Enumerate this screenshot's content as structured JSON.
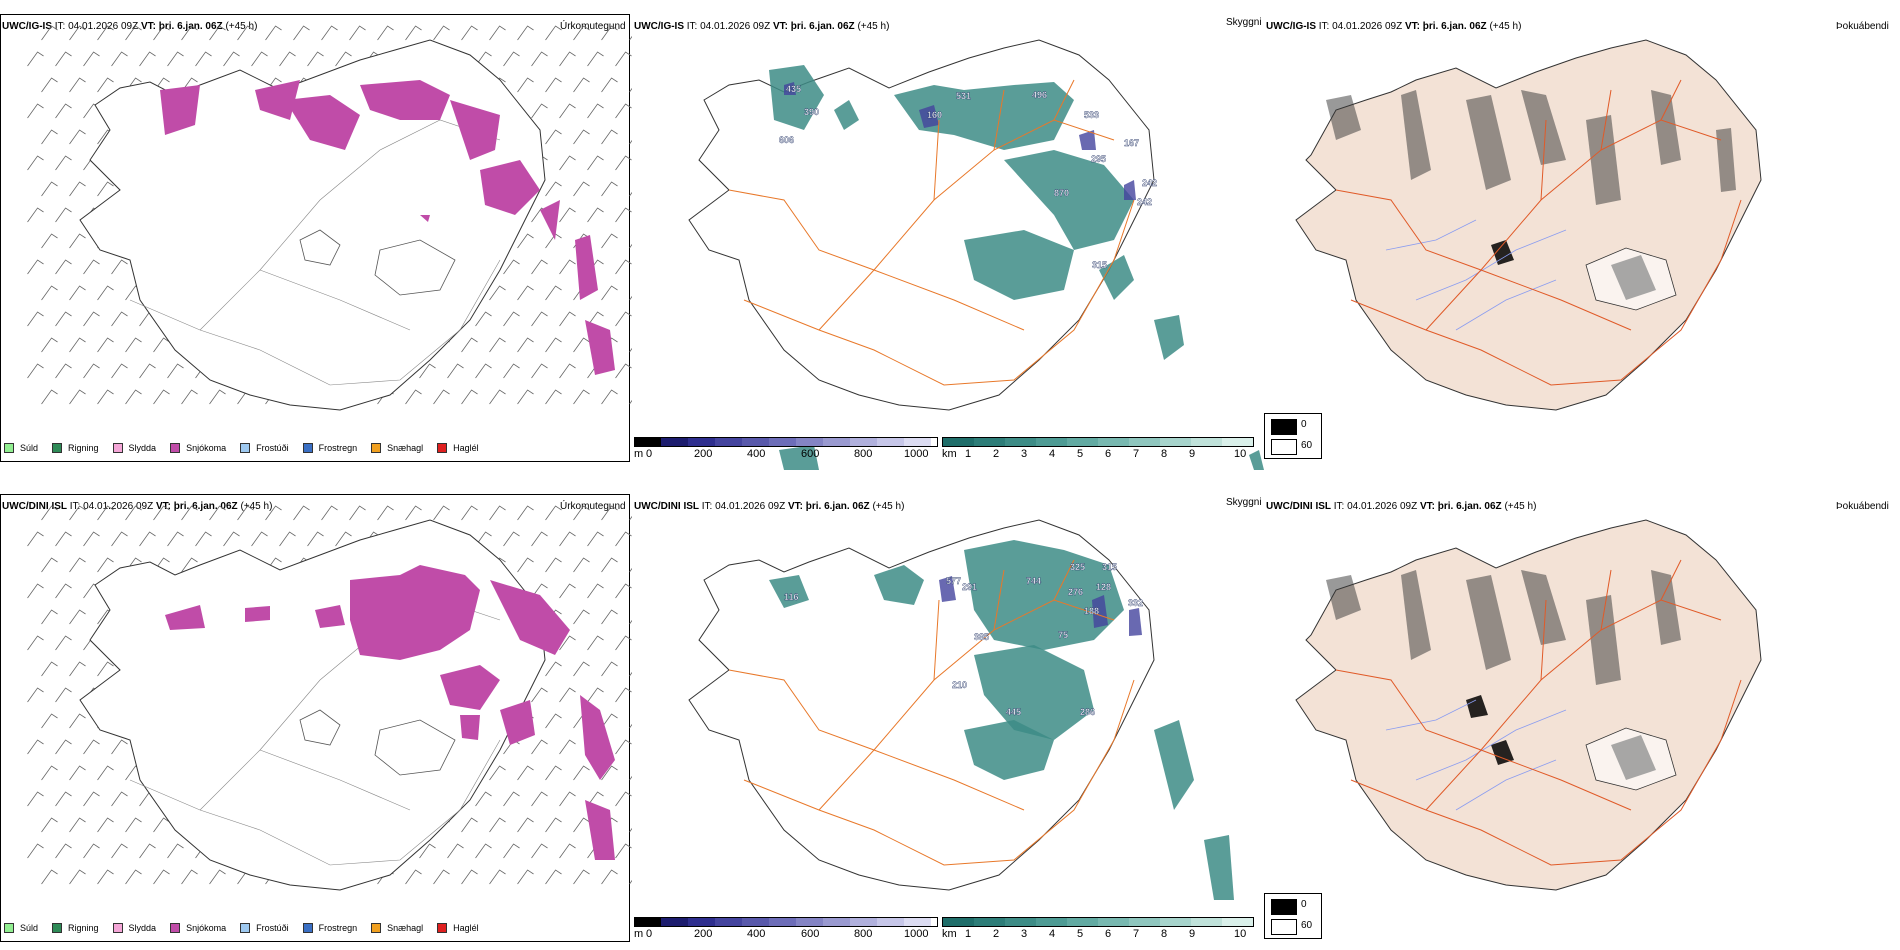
{
  "rows": [
    {
      "model": "UWC/IG-IS",
      "it": "IT: 04.01.2026 09Z",
      "vt": "VT: þri. 6.jan. 06Z",
      "lead": "(+45 h)",
      "precip_maxima": [
        "435",
        "390",
        "606",
        "160",
        "531",
        "496",
        "533",
        "295",
        "167",
        "242",
        "242",
        "870",
        "315"
      ]
    },
    {
      "model": "UWC/DINI ISL",
      "it": "IT: 04.01.2026 09Z",
      "vt": "VT: þri. 6.jan. 06Z",
      "lead": "(+45 h)",
      "precip_maxima": [
        "116",
        "577",
        "291",
        "744",
        "325",
        "315",
        "276",
        "128",
        "188",
        "332",
        "385",
        "75",
        "210",
        "445",
        "286"
      ]
    }
  ],
  "panel_titles": {
    "precip_type": "Úrkomutegund",
    "cloud": "Skyggni",
    "fog": "Þokuábendi"
  },
  "precip_legend": [
    {
      "label": "Súld",
      "color": "#90ee90"
    },
    {
      "label": "Rigning",
      "color": "#2e8b57"
    },
    {
      "label": "Slydda",
      "color": "#f4a6d7"
    },
    {
      "label": "Snjókoma",
      "color": "#c04ca8"
    },
    {
      "label": "Frostúði",
      "color": "#9ec9f0"
    },
    {
      "label": "Frostregn",
      "color": "#3a6fc4"
    },
    {
      "label": "Snæhagl",
      "color": "#f0a020"
    },
    {
      "label": "Haglél",
      "color": "#e02020"
    }
  ],
  "elevation_bar": {
    "unit": "m",
    "ticks": [
      "0",
      "200",
      "400",
      "600",
      "800",
      "1000"
    ],
    "colors": [
      "#000000",
      "#1c1c6e",
      "#2e2e8e",
      "#44449e",
      "#5858aa",
      "#6d6db8",
      "#8484c4",
      "#9a9ad0",
      "#b0b0dc",
      "#c6c6e8",
      "#dcdcf2"
    ]
  },
  "visibility_bar": {
    "unit": "km",
    "ticks": [
      "1",
      "2",
      "3",
      "4",
      "5",
      "6",
      "7",
      "8",
      "9",
      "10"
    ],
    "colors": [
      "#1f6e6a",
      "#2d7d78",
      "#3d8c86",
      "#4e9b94",
      "#62aaa2",
      "#78b8b0",
      "#8fc6be",
      "#a7d4cc",
      "#c0e2da",
      "#daf0ea"
    ]
  },
  "fog_legend": [
    {
      "label": "0",
      "color": "#000000"
    },
    {
      "label": "60",
      "color": "#ffffff"
    }
  ],
  "colors": {
    "snow": "#c04ca8",
    "visibility": "#3d8c86",
    "roads": "#e8782a",
    "rivers": "#8a9cf0",
    "land_fog": "#f3e2d6"
  }
}
